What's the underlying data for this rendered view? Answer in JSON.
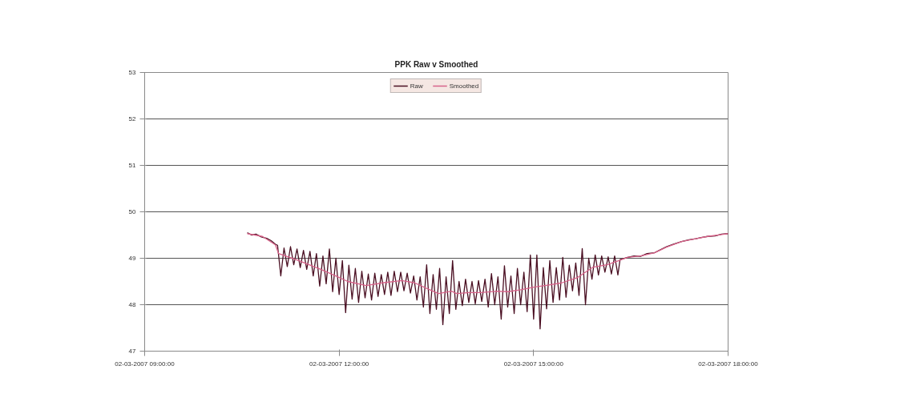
{
  "chart_data": {
    "type": "line",
    "title": "PPK Raw v Smoothed",
    "xlim": [
      "2007-03-02T09:00",
      "2007-03-02T18:00"
    ],
    "xticks": [
      {
        "value": "2007-03-02T09:00",
        "label": "02-03-2007 09:00:00"
      },
      {
        "value": "2007-03-02T12:00",
        "label": "02-03-2007 12:00:00"
      },
      {
        "value": "2007-03-02T15:00",
        "label": "02-03-2007 15:00:00"
      },
      {
        "value": "2007-03-02T18:00",
        "label": "02-03-2007 18:00:00"
      }
    ],
    "ylim": [
      47,
      53
    ],
    "yticks": [
      47,
      48,
      49,
      50,
      51,
      52,
      53
    ],
    "grid": "y",
    "legend": "top",
    "line_style": "solid",
    "series": [
      {
        "name": "Raw",
        "color": "#4a0f22",
        "x": [
          "2007-03-02T10:35",
          "2007-03-02T10:39",
          "2007-03-02T10:43",
          "2007-03-02T10:48",
          "2007-03-02T10:53",
          "2007-03-02T10:57",
          "2007-03-02T11:01",
          "2007-03-02T11:03",
          "2007-03-02T11:06",
          "2007-03-02T11:09",
          "2007-03-02T11:12",
          "2007-03-02T11:15",
          "2007-03-02T11:18",
          "2007-03-02T11:21",
          "2007-03-02T11:24",
          "2007-03-02T11:27",
          "2007-03-02T11:30",
          "2007-03-02T11:33",
          "2007-03-02T11:36",
          "2007-03-02T11:39",
          "2007-03-02T11:42",
          "2007-03-02T11:45",
          "2007-03-02T11:48",
          "2007-03-02T11:51",
          "2007-03-02T11:54",
          "2007-03-02T11:57",
          "2007-03-02T12:00",
          "2007-03-02T12:03",
          "2007-03-02T12:06",
          "2007-03-02T12:09",
          "2007-03-02T12:12",
          "2007-03-02T12:15",
          "2007-03-02T12:18",
          "2007-03-02T12:21",
          "2007-03-02T12:24",
          "2007-03-02T12:27",
          "2007-03-02T12:30",
          "2007-03-02T12:33",
          "2007-03-02T12:36",
          "2007-03-02T12:39",
          "2007-03-02T12:42",
          "2007-03-02T12:45",
          "2007-03-02T12:48",
          "2007-03-02T12:51",
          "2007-03-02T12:54",
          "2007-03-02T12:57",
          "2007-03-02T13:00",
          "2007-03-02T13:03",
          "2007-03-02T13:06",
          "2007-03-02T13:09",
          "2007-03-02T13:12",
          "2007-03-02T13:15",
          "2007-03-02T13:18",
          "2007-03-02T13:21",
          "2007-03-02T13:24",
          "2007-03-02T13:27",
          "2007-03-02T13:30",
          "2007-03-02T13:33",
          "2007-03-02T13:36",
          "2007-03-02T13:39",
          "2007-03-02T13:42",
          "2007-03-02T13:45",
          "2007-03-02T13:48",
          "2007-03-02T13:51",
          "2007-03-02T13:54",
          "2007-03-02T13:57",
          "2007-03-02T14:00",
          "2007-03-02T14:03",
          "2007-03-02T14:06",
          "2007-03-02T14:09",
          "2007-03-02T14:12",
          "2007-03-02T14:15",
          "2007-03-02T14:18",
          "2007-03-02T14:21",
          "2007-03-02T14:24",
          "2007-03-02T14:27",
          "2007-03-02T14:30",
          "2007-03-02T14:33",
          "2007-03-02T14:36",
          "2007-03-02T14:39",
          "2007-03-02T14:42",
          "2007-03-02T14:45",
          "2007-03-02T14:48",
          "2007-03-02T14:51",
          "2007-03-02T14:54",
          "2007-03-02T14:57",
          "2007-03-02T15:00",
          "2007-03-02T15:03",
          "2007-03-02T15:06",
          "2007-03-02T15:09",
          "2007-03-02T15:12",
          "2007-03-02T15:15",
          "2007-03-02T15:18",
          "2007-03-02T15:21",
          "2007-03-02T15:24",
          "2007-03-02T15:27",
          "2007-03-02T15:30",
          "2007-03-02T15:33",
          "2007-03-02T15:36",
          "2007-03-02T15:39",
          "2007-03-02T15:42",
          "2007-03-02T15:45",
          "2007-03-02T15:48",
          "2007-03-02T15:51",
          "2007-03-02T15:54",
          "2007-03-02T15:57",
          "2007-03-02T16:00",
          "2007-03-02T16:03",
          "2007-03-02T16:06",
          "2007-03-02T16:09",
          "2007-03-02T16:12",
          "2007-03-02T16:15",
          "2007-03-02T16:18",
          "2007-03-02T16:20",
          "2007-03-02T16:27",
          "2007-03-02T16:33",
          "2007-03-02T16:39",
          "2007-03-02T16:45",
          "2007-03-02T16:52",
          "2007-03-02T16:57",
          "2007-03-02T17:03",
          "2007-03-02T17:09",
          "2007-03-02T17:17",
          "2007-03-02T17:24",
          "2007-03-02T17:30",
          "2007-03-02T17:36",
          "2007-03-02T17:41",
          "2007-03-02T17:48",
          "2007-03-02T17:54",
          "2007-03-02T18:00"
        ],
        "values": [
          49.55,
          49.5,
          49.52,
          49.46,
          49.43,
          49.38,
          49.3,
          49.28,
          48.62,
          49.22,
          48.82,
          49.25,
          48.86,
          49.2,
          48.8,
          49.17,
          48.76,
          49.15,
          48.62,
          49.1,
          48.4,
          49.05,
          48.45,
          49.2,
          48.28,
          49.0,
          48.22,
          48.95,
          47.83,
          48.85,
          48.12,
          48.78,
          48.05,
          48.72,
          48.15,
          48.66,
          48.1,
          48.68,
          48.18,
          48.65,
          48.22,
          48.7,
          48.2,
          48.72,
          48.28,
          48.7,
          48.3,
          48.68,
          48.25,
          48.62,
          48.1,
          48.6,
          47.95,
          48.86,
          47.81,
          48.65,
          47.9,
          48.78,
          47.57,
          48.6,
          47.81,
          48.95,
          47.9,
          48.5,
          47.98,
          48.55,
          48.05,
          48.5,
          48.02,
          48.52,
          48.07,
          48.55,
          47.95,
          48.67,
          48.0,
          48.6,
          47.69,
          48.84,
          47.95,
          48.62,
          47.81,
          48.78,
          48.0,
          48.7,
          47.85,
          49.07,
          47.69,
          49.07,
          47.48,
          48.8,
          47.91,
          48.95,
          48.05,
          48.8,
          48.1,
          49.02,
          48.16,
          48.85,
          48.3,
          48.9,
          48.2,
          49.21,
          48.0,
          49.0,
          48.55,
          49.07,
          48.64,
          49.05,
          48.7,
          49.03,
          48.66,
          49.05,
          48.64,
          48.97,
          49.02,
          49.05,
          49.04,
          49.1,
          49.12,
          49.18,
          49.25,
          49.3,
          49.36,
          49.4,
          49.42,
          49.45,
          49.47,
          49.48,
          49.52,
          49.53
        ]
      },
      {
        "name": "Smoothed",
        "color": "#d8638a",
        "x": [
          "2007-03-02T10:35",
          "2007-03-02T10:49",
          "2007-03-02T11:01",
          "2007-03-02T11:04",
          "2007-03-02T11:19",
          "2007-03-02T11:30",
          "2007-03-02T11:43",
          "2007-03-02T11:57",
          "2007-03-02T12:08",
          "2007-03-02T12:25",
          "2007-03-02T12:40",
          "2007-03-02T12:58",
          "2007-03-02T13:10",
          "2007-03-02T13:21",
          "2007-03-02T13:32",
          "2007-03-02T13:44",
          "2007-03-02T13:49",
          "2007-03-02T14:00",
          "2007-03-02T14:11",
          "2007-03-02T14:26",
          "2007-03-02T14:36",
          "2007-03-02T14:48",
          "2007-03-02T15:01",
          "2007-03-02T15:13",
          "2007-03-02T15:26",
          "2007-03-02T15:41",
          "2007-03-02T15:55",
          "2007-03-02T16:08",
          "2007-03-02T16:19",
          "2007-03-02T16:27",
          "2007-03-02T16:39",
          "2007-03-02T16:52",
          "2007-03-02T17:03",
          "2007-03-02T17:17",
          "2007-03-02T17:30",
          "2007-03-02T17:41",
          "2007-03-02T17:54",
          "2007-03-02T18:00"
        ],
        "values": [
          49.53,
          49.47,
          49.29,
          49.1,
          48.98,
          48.88,
          48.76,
          48.62,
          48.5,
          48.41,
          48.47,
          48.52,
          48.47,
          48.35,
          48.24,
          48.29,
          48.24,
          48.26,
          48.26,
          48.29,
          48.28,
          48.32,
          48.38,
          48.42,
          48.47,
          48.59,
          48.81,
          48.86,
          48.95,
          49.02,
          49.05,
          49.12,
          49.24,
          49.36,
          49.42,
          49.47,
          49.51,
          49.53
        ]
      }
    ]
  }
}
